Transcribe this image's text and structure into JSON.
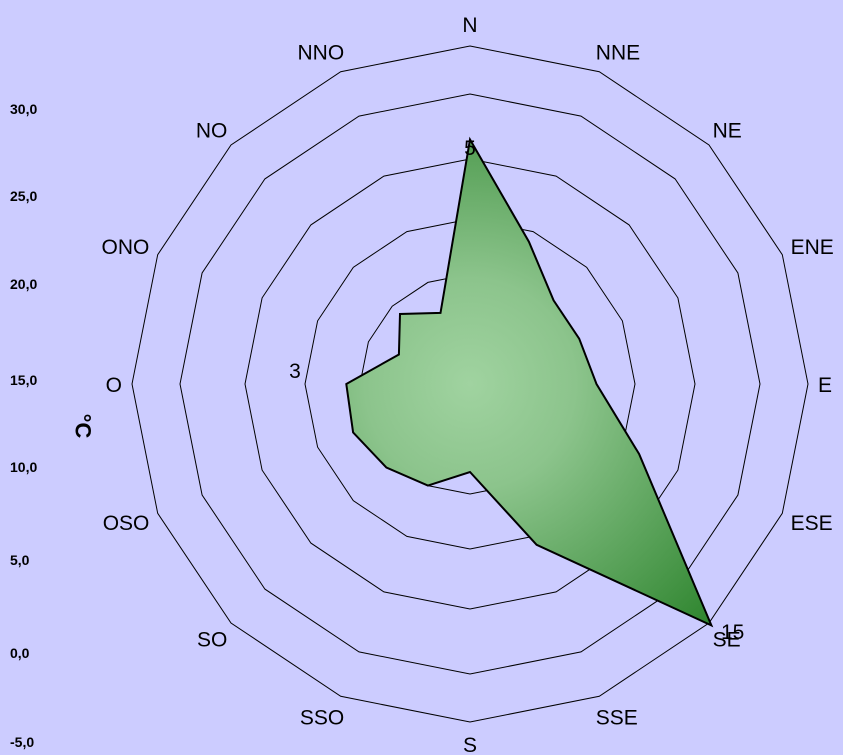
{
  "chart_data": {
    "type": "radar",
    "categories": [
      "N",
      "NNE",
      "NE",
      "ENE",
      "E",
      "ESE",
      "SE",
      "SSE",
      "S",
      "SSO",
      "SO",
      "OSO",
      "O",
      "ONO",
      "NO",
      "NNO"
    ],
    "values": [
      5.9,
      2.6,
      1.3,
      1.3,
      1.6,
      3.6,
      15.5,
      3.3,
      0.8,
      1.0,
      1.3,
      1.6,
      1.5,
      0.7,
      0.9,
      0.7
    ],
    "rings": [
      1,
      3,
      5,
      8,
      15
    ],
    "ring_labels": [
      {
        "ring_index": 1,
        "spoke": "O",
        "text": "3"
      },
      {
        "ring_index": 2,
        "spoke": "N",
        "text": "5"
      },
      {
        "ring_index": 4,
        "spoke": "SE",
        "text": "15"
      }
    ],
    "fill_colors": {
      "light": "#a0d3a0",
      "dark": "#2a822a"
    },
    "stroke_color": "#000000",
    "y_axis": {
      "label": "°C",
      "ticks": [
        "30,0",
        "25,0",
        "20,0",
        "15,0",
        "10,0",
        "5,0",
        "0,0",
        "-5,0"
      ]
    }
  }
}
